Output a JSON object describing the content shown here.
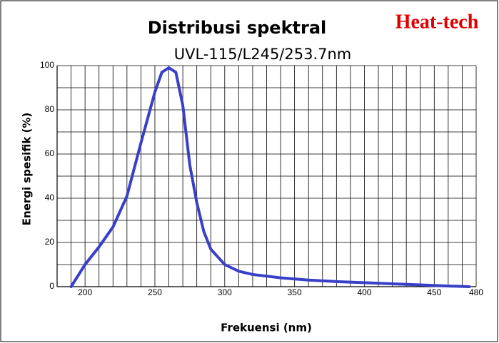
{
  "chart_data": {
    "type": "line",
    "title": "Distribusi spektral",
    "subtitle": "UVL-115/L245/253.7nm",
    "brand": "Heat-tech",
    "brand_color": "#e00000",
    "x_label": "Frekuensi (nm)",
    "y_label": "Energi spesifik (%)",
    "xlim": [
      180,
      480
    ],
    "ylim": [
      0,
      100
    ],
    "xticks": [
      200,
      250,
      300,
      350,
      400,
      450,
      480
    ],
    "yticks": [
      0,
      20,
      40,
      60,
      80,
      100
    ],
    "x_gridlines": [
      180,
      190,
      200,
      210,
      220,
      230,
      240,
      250,
      260,
      270,
      280,
      290,
      300,
      310,
      320,
      330,
      340,
      350,
      360,
      370,
      380,
      390,
      400,
      410,
      420,
      430,
      440,
      450,
      460,
      470,
      480
    ],
    "y_gridlines": [
      0,
      10,
      20,
      30,
      40,
      50,
      60,
      70,
      80,
      90,
      100
    ],
    "grid": true,
    "series": [
      {
        "name": "UVL-115/L245/253.7nm",
        "color": "#3a3fc8",
        "x": [
          190,
          195,
          200,
          210,
          220,
          230,
          240,
          250,
          255,
          260,
          265,
          270,
          275,
          280,
          285,
          290,
          300,
          310,
          320,
          340,
          360,
          380,
          400,
          420,
          440,
          460,
          475
        ],
        "values": [
          0,
          5,
          10,
          18,
          27,
          41,
          65,
          88,
          97,
          99,
          97,
          82,
          55,
          38,
          25,
          17,
          10,
          7,
          5.5,
          4,
          3,
          2.3,
          1.8,
          1.3,
          0.8,
          0.3,
          0
        ]
      }
    ]
  }
}
